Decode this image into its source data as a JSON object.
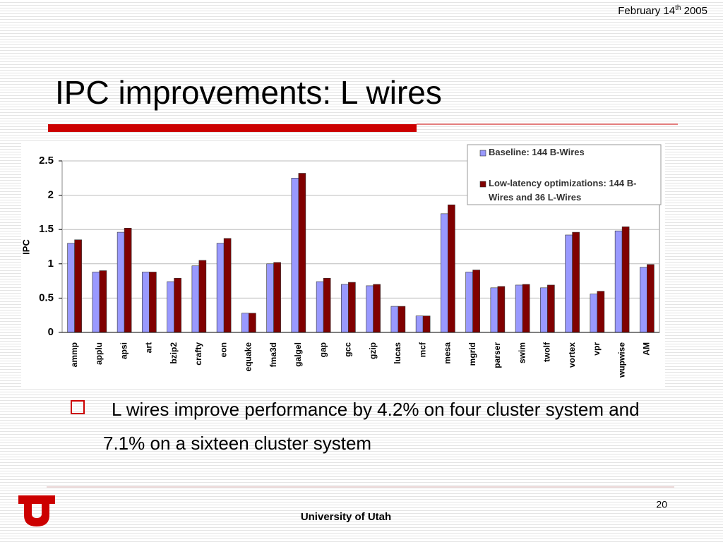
{
  "slide": {
    "date": {
      "text": "February 14",
      "superscript": "th",
      "year": "2005"
    },
    "title": "IPC improvements: L wires",
    "bullet": "L wires improve performance by 4.2% on four cluster system and 7.1% on a sixteen cluster system",
    "footer": "University of Utah",
    "page_number": "20"
  },
  "chart_data": {
    "type": "bar",
    "y_label": "IPC",
    "categories": [
      "ammp",
      "applu",
      "apsi",
      "art",
      "bzip2",
      "crafty",
      "eon",
      "equake",
      "fma3d",
      "galgel",
      "gap",
      "gcc",
      "gzip",
      "lucas",
      "mcf",
      "mesa",
      "mgrid",
      "parser",
      "swim",
      "twolf",
      "vortex",
      "vpr",
      "wupwise",
      "AM"
    ],
    "series": [
      {
        "name": "Baseline: 144 B-Wires",
        "color": "#9999ff",
        "values": [
          1.3,
          0.88,
          1.46,
          0.88,
          0.74,
          0.97,
          1.3,
          0.28,
          1.0,
          2.25,
          0.74,
          0.7,
          0.68,
          0.38,
          0.24,
          1.73,
          0.88,
          0.65,
          0.69,
          0.65,
          1.42,
          0.56,
          1.48,
          0.95
        ]
      },
      {
        "name": "Low-latency optimizations: 144 B-Wires and 36 L-Wires",
        "color": "#800000",
        "values": [
          1.35,
          0.9,
          1.52,
          0.88,
          0.79,
          1.05,
          1.37,
          0.28,
          1.02,
          2.32,
          0.79,
          0.73,
          0.7,
          0.38,
          0.24,
          1.86,
          0.91,
          0.67,
          0.7,
          0.69,
          1.46,
          0.6,
          1.54,
          0.99
        ]
      }
    ],
    "ylim": [
      0,
      2.5
    ],
    "yticks": [
      0,
      0.5,
      1,
      1.5,
      2,
      2.5
    ],
    "grid": true,
    "legend": "top-right"
  }
}
